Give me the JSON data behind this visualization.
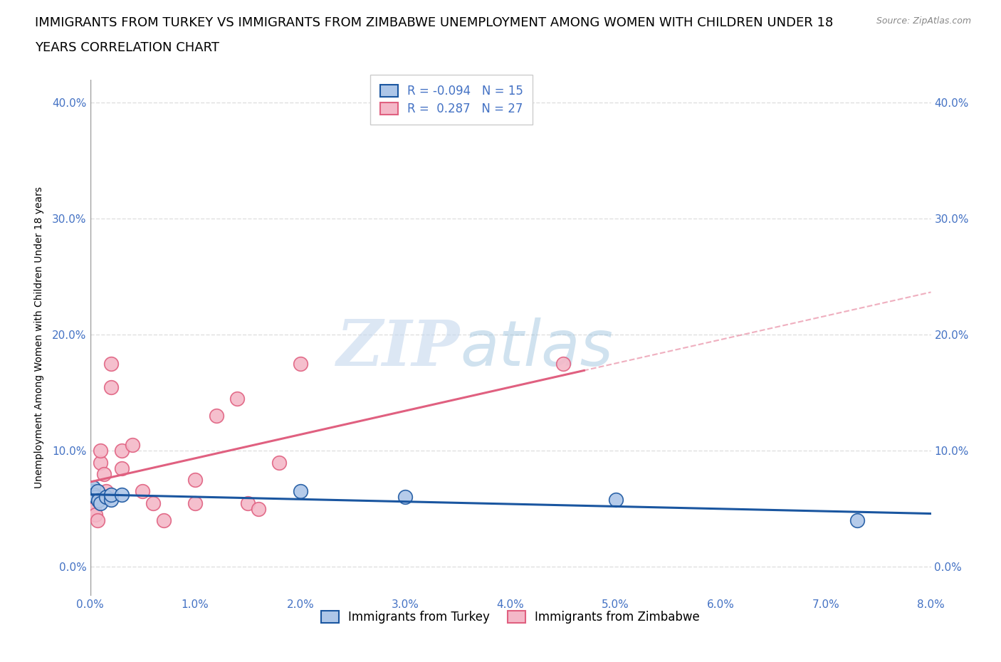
{
  "title_line1": "IMMIGRANTS FROM TURKEY VS IMMIGRANTS FROM ZIMBABWE UNEMPLOYMENT AMONG WOMEN WITH CHILDREN UNDER 18",
  "title_line2": "YEARS CORRELATION CHART",
  "source": "Source: ZipAtlas.com",
  "ylabel": "Unemployment Among Women with Children Under 18 years",
  "xlabel_turkey": "Immigrants from Turkey",
  "xlabel_zimbabwe": "Immigrants from Zimbabwe",
  "watermark_zip": "ZIP",
  "watermark_atlas": "atlas",
  "turkey_R": -0.094,
  "turkey_N": 15,
  "zimbabwe_R": 0.287,
  "zimbabwe_N": 27,
  "turkey_color": "#adc6e8",
  "turkey_line_color": "#1a56a0",
  "zimbabwe_color": "#f4b8c8",
  "zimbabwe_line_color": "#e06080",
  "xlim": [
    0.0,
    0.08
  ],
  "ylim": [
    -0.025,
    0.42
  ],
  "xticks": [
    0.0,
    0.01,
    0.02,
    0.03,
    0.04,
    0.05,
    0.06,
    0.07,
    0.08
  ],
  "yticks": [
    0.0,
    0.1,
    0.2,
    0.3,
    0.4
  ],
  "turkey_x": [
    0.0002,
    0.0003,
    0.0004,
    0.0005,
    0.0007,
    0.0008,
    0.001,
    0.0015,
    0.002,
    0.002,
    0.003,
    0.02,
    0.03,
    0.05,
    0.073
  ],
  "turkey_y": [
    0.065,
    0.068,
    0.062,
    0.06,
    0.065,
    0.057,
    0.055,
    0.06,
    0.058,
    0.062,
    0.062,
    0.065,
    0.06,
    0.058,
    0.04
  ],
  "zimbabwe_x": [
    0.0001,
    0.0002,
    0.0003,
    0.0004,
    0.0005,
    0.0007,
    0.001,
    0.001,
    0.0013,
    0.0015,
    0.002,
    0.002,
    0.003,
    0.003,
    0.004,
    0.005,
    0.006,
    0.007,
    0.01,
    0.01,
    0.012,
    0.014,
    0.015,
    0.016,
    0.018,
    0.02,
    0.045
  ],
  "zimbabwe_y": [
    0.065,
    0.06,
    0.055,
    0.05,
    0.045,
    0.04,
    0.09,
    0.1,
    0.08,
    0.065,
    0.155,
    0.175,
    0.085,
    0.1,
    0.105,
    0.065,
    0.055,
    0.04,
    0.055,
    0.075,
    0.13,
    0.145,
    0.055,
    0.05,
    0.09,
    0.175,
    0.175
  ],
  "bg_color": "#ffffff",
  "grid_color": "#e0e0e0",
  "title_fontsize": 13,
  "axis_label_fontsize": 10,
  "tick_fontsize": 11,
  "tick_color": "#4472c4",
  "legend_fontsize": 12
}
